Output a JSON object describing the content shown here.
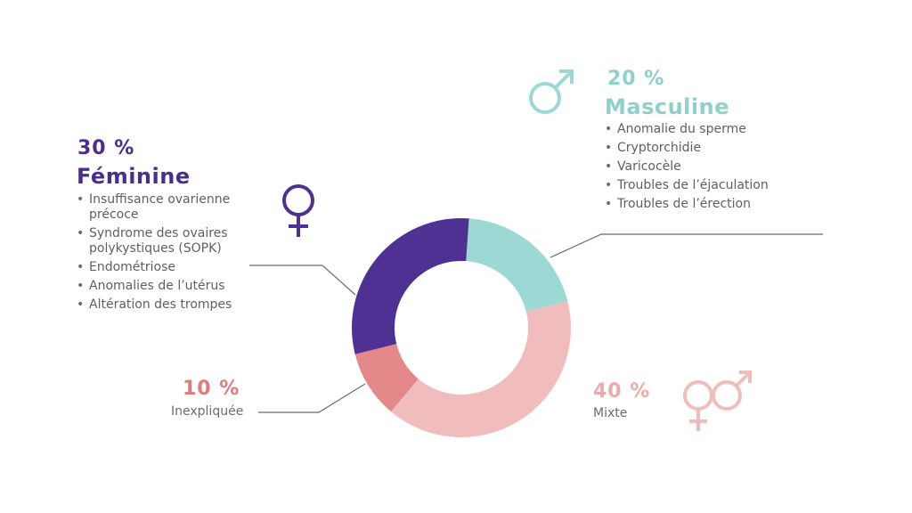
{
  "colors": {
    "feminine": "#4e3193",
    "masculine": "#9cd9d5",
    "mixte": "#f1bcbc",
    "inexpliquee": "#e4888a",
    "line": "#6b6b6b",
    "feminine_text": "#4b2d8f",
    "masculine_text": "#8fd0cb",
    "mixte_text": "#eeaaaa",
    "inexpliquee_text": "#e27a7c"
  },
  "icons": {
    "feminine": "female-symbol-icon",
    "masculine": "male-symbol-icon",
    "mixte": "female-male-symbol-icon"
  },
  "feminine": {
    "pct": "30 %",
    "label": "Féminine",
    "causes": [
      "Insuffisance ovarienne précoce",
      "Syndrome des ovaires polykystiques (SOPK)",
      "Endométriose",
      "Anomalies de l’utérus",
      "Altération des trompes"
    ]
  },
  "masculine": {
    "pct": "20 %",
    "label": "Masculine",
    "causes": [
      "Anomalie du sperme",
      "Cryptorchidie",
      "Varicocèle",
      "Troubles de l’éjaculation",
      "Troubles de l’érection"
    ]
  },
  "mixte": {
    "pct": "40 %",
    "label": "Mixte"
  },
  "inexpliquee": {
    "pct": "10 %",
    "label": "Inexpliquée"
  },
  "chart_data": {
    "type": "pie",
    "categories": [
      "Masculine",
      "Mixte",
      "Inexpliquée",
      "Féminine"
    ],
    "values": [
      20,
      40,
      10,
      30
    ],
    "colors": [
      "#9cd9d5",
      "#f1bcbc",
      "#e4888a",
      "#4e3193"
    ],
    "title": "",
    "donut": true
  }
}
